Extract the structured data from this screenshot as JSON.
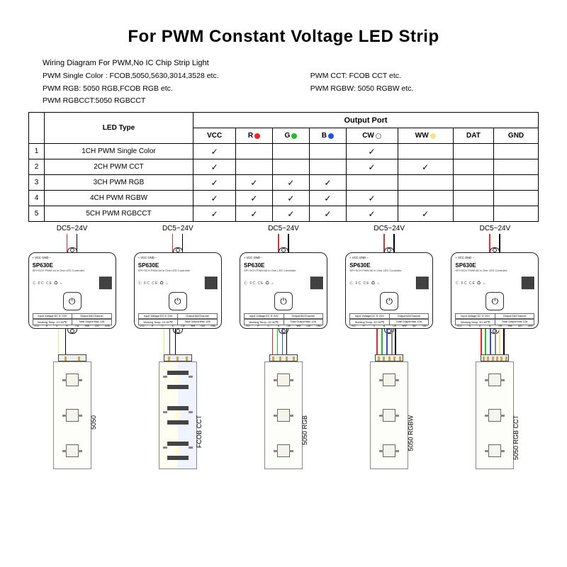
{
  "title": "For PWM Constant Voltage LED Strip",
  "subtitle": "Wiring Diagram For PWM,No IC Chip Strip Light",
  "desc": {
    "l1": "PWM Single Color :  FCOB,5050,5630,3014,3528 etc.",
    "l2": "PWM RGB:  5050 RGB,FCOB RGB etc.",
    "l3": "PWM RGBCCT:5050 RGBCCT",
    "r1": "PWM CCT:  FCOB CCT etc.",
    "r2": "PWM RGBW: 5050 RGBW etc."
  },
  "table": {
    "led_type_header": "LED Type",
    "output_port_header": "Output Port",
    "ports": [
      {
        "label": "VCC",
        "dot": null
      },
      {
        "label": "R",
        "dot": "#ff2020"
      },
      {
        "label": "G",
        "dot": "#20c020"
      },
      {
        "label": "B",
        "dot": "#2050ff"
      },
      {
        "label": "CW",
        "dot": "#ffffff",
        "border": true
      },
      {
        "label": "WW",
        "dot": "#ffe090"
      },
      {
        "label": "DAT",
        "dot": null
      },
      {
        "label": "GND",
        "dot": null
      }
    ],
    "rows": [
      {
        "n": "1",
        "name": "1CH PWM Single Color",
        "checks": [
          true,
          false,
          false,
          false,
          true,
          false,
          false,
          false
        ]
      },
      {
        "n": "2",
        "name": "2CH PWM CCT",
        "checks": [
          true,
          false,
          false,
          false,
          true,
          true,
          false,
          false
        ]
      },
      {
        "n": "3",
        "name": "3CH PWM RGB",
        "checks": [
          true,
          true,
          true,
          true,
          false,
          false,
          false,
          false
        ]
      },
      {
        "n": "4",
        "name": "4CH PWM RGBW",
        "checks": [
          true,
          true,
          true,
          true,
          true,
          false,
          false,
          false
        ]
      },
      {
        "n": "5",
        "name": "5CH PWM RGBCCT",
        "checks": [
          true,
          true,
          true,
          true,
          true,
          true,
          false,
          false
        ]
      }
    ]
  },
  "controller": {
    "top_label_left": "+    VCC    GND    −",
    "top_label_right": "",
    "model": "SP630E",
    "subtitle": "SPI+5CH PWM All In One LED Controller",
    "icons": "Ⓒ FC CE ♻ ⌂",
    "power_symbol": "⏻",
    "spec1a": "Input Voltage:DC 5~24V",
    "spec1b": "Output:6A/Channel",
    "spec2a": "Working Temp.-10~60℃",
    "spec2b": "Total Output:Max 12A",
    "terminals": [
      "VCC",
      "R",
      "G",
      "B",
      "CW",
      "WW",
      "DAT",
      "GND"
    ]
  },
  "columns": [
    {
      "dc": "DC5~24V",
      "strip_label": "5050",
      "strip_class": "plain",
      "wires": [
        {
          "color": "#000000",
          "x": 30
        },
        {
          "color": "#f5e080",
          "x": 20
        }
      ],
      "pins": 2
    },
    {
      "dc": "DC5~24V",
      "strip_label": "FCOB CCT",
      "strip_class": "cct",
      "wires": [
        {
          "color": "#000000",
          "x": 36
        },
        {
          "color": "#333333",
          "x": 28
        },
        {
          "color": "#f5e080",
          "x": 20
        }
      ],
      "pins": 3
    },
    {
      "dc": "DC5~24V",
      "strip_label": "5050 RGB",
      "strip_class": "plain",
      "wires": [
        {
          "color": "#000000",
          "x": 44
        },
        {
          "color": "#ff2020",
          "x": 24
        },
        {
          "color": "#20c020",
          "x": 31
        },
        {
          "color": "#2050ff",
          "x": 38
        }
      ],
      "pins": 4
    },
    {
      "dc": "DC5~24V",
      "strip_label": "5050 RGBW",
      "strip_class": "plain",
      "wires": [
        {
          "color": "#000000",
          "x": 48
        },
        {
          "color": "#ff2020",
          "x": 22
        },
        {
          "color": "#20c020",
          "x": 29
        },
        {
          "color": "#2050ff",
          "x": 36
        },
        {
          "color": "#888888",
          "x": 43
        }
      ],
      "pins": 5
    },
    {
      "dc": "DC5~24V",
      "strip_label": "5050 RGB CCT",
      "strip_class": "plain",
      "wires": [
        {
          "color": "#000000",
          "x": 52
        },
        {
          "color": "#ff2020",
          "x": 20
        },
        {
          "color": "#20c020",
          "x": 26
        },
        {
          "color": "#2050ff",
          "x": 33
        },
        {
          "color": "#888888",
          "x": 40
        },
        {
          "color": "#f5e080",
          "x": 46
        }
      ],
      "pins": 6
    }
  ]
}
